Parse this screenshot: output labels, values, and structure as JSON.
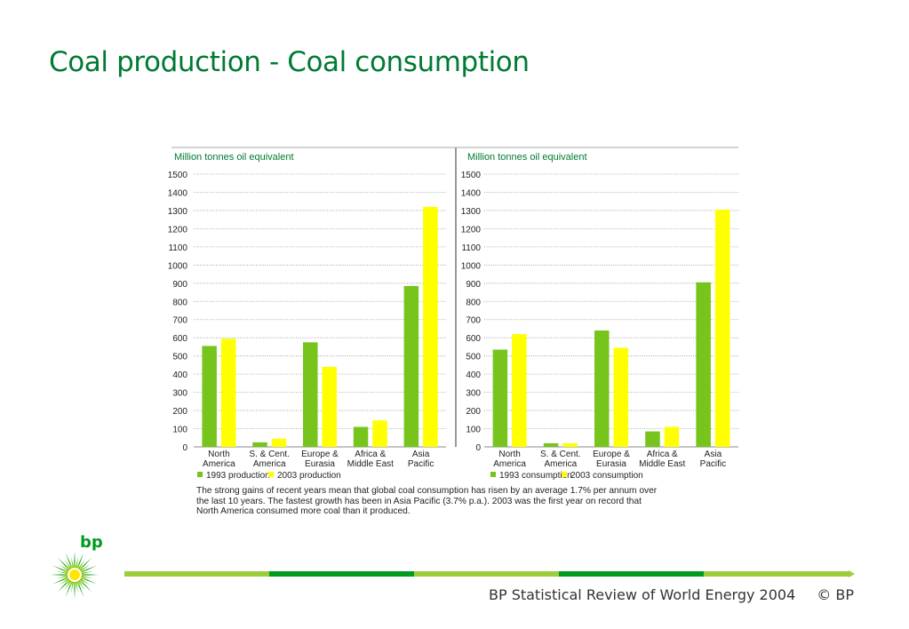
{
  "slide": {
    "title": "Coal production - Coal consumption",
    "footer_source": "BP Statistical Review of World Energy 2004",
    "footer_copyright": "© BP",
    "logo_text": "bp"
  },
  "colors": {
    "title": "#007a33",
    "series_1993": "#77c41c",
    "series_2003": "#ffff00",
    "footer_segments": [
      "#9ccd3a",
      "#009a1f",
      "#9ccd3a",
      "#009a1f",
      "#9ccd3a"
    ]
  },
  "caption": "The strong gains of recent years mean that global coal consumption has risen by an average 1.7% per annum over\n the last 10 years. The fastest growth has been in Asia Pacific (3.7% p.a.). 2003 was the first year on record that\nNorth America consumed more coal than it produced.",
  "chart_data": [
    {
      "type": "bar",
      "ylabel": "Million tonnes oil equivalent",
      "ylim": [
        0,
        1500
      ],
      "yticks": [
        0,
        100,
        200,
        300,
        400,
        500,
        600,
        700,
        800,
        900,
        1000,
        1100,
        1200,
        1300,
        1400,
        1500
      ],
      "categories": [
        "North\nAmerica",
        "S. & Cent.\nAmerica",
        "Europe &\nEurasia",
        "Africa &\nMiddle East",
        "Asia\nPacific"
      ],
      "series": [
        {
          "name": "1993 production",
          "values": [
            555,
            25,
            575,
            110,
            885
          ]
        },
        {
          "name": "2003 production",
          "values": [
            595,
            45,
            440,
            145,
            1320
          ]
        }
      ],
      "legend_position": "bottom",
      "grid": "horizontal dotted"
    },
    {
      "type": "bar",
      "ylabel": "Million tonnes oil equivalent",
      "ylim": [
        0,
        1500
      ],
      "yticks": [
        0,
        100,
        200,
        300,
        400,
        500,
        600,
        700,
        800,
        900,
        1000,
        1100,
        1200,
        1300,
        1400,
        1500
      ],
      "categories": [
        "North\nAmerica",
        "S. & Cent.\nAmerica",
        "Europe &\nEurasia",
        "Africa &\nMiddle East",
        "Asia\nPacific"
      ],
      "series": [
        {
          "name": "1993 consumption",
          "values": [
            535,
            20,
            640,
            85,
            905
          ]
        },
        {
          "name": "2003 consumption",
          "values": [
            620,
            20,
            545,
            110,
            1305
          ]
        }
      ],
      "legend_position": "bottom",
      "grid": "horizontal dotted"
    }
  ]
}
